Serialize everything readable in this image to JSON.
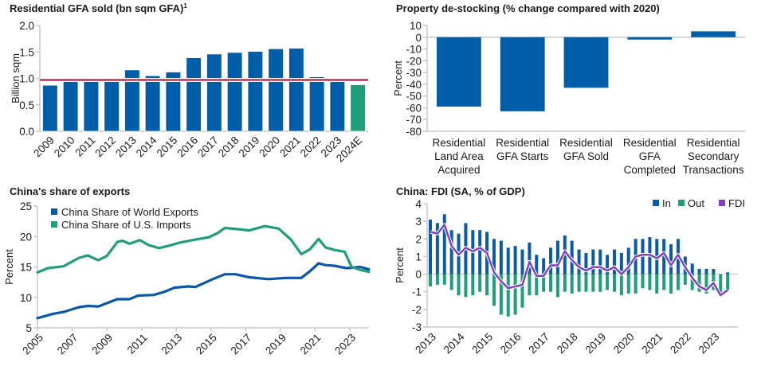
{
  "chart_data": [
    {
      "type": "bar",
      "title": "Residential GFA sold (bn sqm GFA)",
      "title_superscript": "1",
      "ylabel": "Billion sqm",
      "categories": [
        "2009",
        "2010",
        "2011",
        "2012",
        "2013",
        "2014",
        "2015",
        "2016",
        "2017",
        "2018",
        "2019",
        "2020",
        "2021",
        "2022",
        "2023",
        "2024E"
      ],
      "values": [
        0.87,
        0.94,
        0.94,
        0.94,
        1.16,
        1.05,
        1.12,
        1.39,
        1.46,
        1.49,
        1.51,
        1.56,
        1.57,
        1.03,
        0.94,
        0.88
      ],
      "bar_colors": {
        "actual": "#005ea8",
        "estimate": "#1f9e78"
      },
      "reference_line": {
        "value": 0.97,
        "color": "#a8224a"
      },
      "ylim": [
        0,
        2.0
      ],
      "yticks": [
        "0.0",
        "0.5",
        "1.0",
        "1.5",
        "2.0"
      ],
      "grid": false
    },
    {
      "type": "bar",
      "title": "Property de-stocking (% change compared with 2020)",
      "ylabel": "Percent",
      "categories": [
        [
          "Residential",
          "Land Area",
          "Acquired"
        ],
        [
          "Residential",
          "GFA Starts"
        ],
        [
          "Residential",
          "GFA Sold"
        ],
        [
          "Residential",
          "GFA",
          "Completed"
        ],
        [
          "Residential",
          "Secondary",
          "Transactions"
        ]
      ],
      "values": [
        -59,
        -63,
        -43,
        -2,
        5
      ],
      "color": "#005ea8",
      "ylim": [
        -80,
        10
      ],
      "yticks": [
        "-80",
        "-70",
        "-60",
        "-50",
        "-40",
        "-30",
        "-20",
        "-10",
        "0",
        "10"
      ],
      "grid": false
    },
    {
      "type": "line",
      "title": "China's share of exports",
      "ylabel": "Percent",
      "xlim": [
        2005,
        2024.1
      ],
      "ylim": [
        5,
        25
      ],
      "xticks": [
        "2005",
        "2007",
        "2009",
        "2011",
        "2013",
        "2015",
        "2017",
        "2019",
        "2021",
        "2023"
      ],
      "yticks": [
        "5",
        "10",
        "15",
        "20",
        "25"
      ],
      "legend": "top-left",
      "grid": false,
      "series": [
        {
          "name": "China Share of World Exports",
          "color": "#0a56a8",
          "x": [
            2005.0,
            2005.9,
            2006.5,
            2007.4,
            2007.9,
            2008.5,
            2009.6,
            2010.3,
            2010.8,
            2011.7,
            2012.3,
            2012.9,
            2013.7,
            2014.1,
            2015.1,
            2015.8,
            2016.4,
            2017.2,
            2018.3,
            2019.3,
            2020.2,
            2020.7,
            2021.2,
            2021.6,
            2022.1,
            2022.8,
            2023.6,
            2024.1
          ],
          "y": [
            6.6,
            7.3,
            7.6,
            8.4,
            8.6,
            8.5,
            9.7,
            9.7,
            10.3,
            10.4,
            10.9,
            11.6,
            11.8,
            11.7,
            13.0,
            13.8,
            13.8,
            13.3,
            13.0,
            13.2,
            13.2,
            14.3,
            15.6,
            15.3,
            15.2,
            14.8,
            15.0,
            14.6
          ]
        },
        {
          "name": "China Share of U.S. Imports",
          "color": "#1f9e78",
          "x": [
            2005.0,
            2005.6,
            2006.5,
            2007.4,
            2007.9,
            2008.5,
            2009.0,
            2009.6,
            2009.9,
            2010.3,
            2010.9,
            2011.4,
            2012.0,
            2012.6,
            2013.2,
            2014.1,
            2014.9,
            2015.4,
            2015.8,
            2016.6,
            2017.2,
            2018.1,
            2018.9,
            2019.6,
            2020.2,
            2020.7,
            2021.2,
            2021.6,
            2022.1,
            2022.7,
            2023.1,
            2023.6,
            2024.1
          ],
          "y": [
            14.1,
            14.8,
            15.1,
            16.5,
            16.9,
            16.1,
            16.8,
            19.1,
            19.3,
            18.8,
            19.4,
            18.6,
            18.1,
            18.5,
            19.0,
            19.5,
            19.9,
            20.6,
            21.4,
            21.2,
            21.0,
            21.7,
            21.3,
            19.5,
            17.1,
            17.9,
            19.6,
            18.2,
            17.8,
            17.5,
            15.0,
            14.5,
            14.2
          ]
        }
      ]
    },
    {
      "type": "bar",
      "title": "China: FDI (SA, % of GDP)",
      "ylabel": "Percent",
      "x_start": 2013.0,
      "x_step": 0.25,
      "xlim": [
        2013,
        2023.75
      ],
      "ylim": [
        -3,
        4
      ],
      "xticks": [
        "2013",
        "2014",
        "2015",
        "2016",
        "2017",
        "2018",
        "2019",
        "2020",
        "2021",
        "2022",
        "2023"
      ],
      "yticks": [
        "-3",
        "-2",
        "-1",
        "0",
        "1",
        "2",
        "3",
        "4"
      ],
      "legend": "top-right",
      "grid": false,
      "series": [
        {
          "name": "In",
          "kind": "bar",
          "color": "#0a5aa8",
          "values": [
            3.1,
            2.9,
            3.4,
            2.5,
            2.3,
            2.9,
            2.5,
            2.5,
            2.4,
            2.0,
            1.9,
            1.5,
            1.6,
            1.4,
            1.8,
            1.1,
            0.9,
            1.5,
            1.9,
            2.2,
            1.9,
            1.4,
            1.2,
            1.4,
            1.4,
            1.1,
            1.4,
            1.2,
            1.5,
            2.0,
            2.0,
            2.1,
            2.0,
            2.0,
            1.7,
            2.0,
            1.0,
            0.6,
            0.3,
            0.3,
            0.3,
            0.0,
            0.1
          ]
        },
        {
          "name": "Out",
          "kind": "bar",
          "color": "#1f9e78",
          "values": [
            -0.7,
            -0.6,
            -0.6,
            -0.9,
            -1.2,
            -1.3,
            -1.2,
            -1.0,
            -1.2,
            -1.8,
            -2.3,
            -2.4,
            -2.3,
            -1.9,
            -1.2,
            -1.2,
            -1.0,
            -1.0,
            -1.3,
            -1.0,
            -1.1,
            -1.0,
            -1.0,
            -1.0,
            -1.0,
            -0.9,
            -1.0,
            -1.2,
            -1.1,
            -1.1,
            -0.8,
            -0.9,
            -1.1,
            -0.9,
            -1.1,
            -0.9,
            -0.6,
            -0.9,
            -1.0,
            -1.1,
            -0.9,
            -1.2,
            -0.9
          ]
        },
        {
          "name": "FDI",
          "kind": "line",
          "color": "#7b3fc4",
          "values": [
            2.4,
            2.3,
            2.8,
            1.6,
            1.1,
            1.5,
            1.3,
            1.5,
            1.2,
            0.1,
            -0.4,
            -0.8,
            -0.7,
            -0.6,
            0.7,
            -0.1,
            -0.1,
            0.5,
            0.5,
            1.3,
            0.8,
            0.4,
            0.2,
            0.4,
            0.4,
            0.2,
            0.4,
            0.0,
            0.4,
            1.0,
            1.1,
            1.1,
            0.9,
            1.2,
            0.5,
            1.1,
            0.4,
            -0.2,
            -0.7,
            -0.9,
            -0.5,
            -1.2,
            -0.9
          ]
        }
      ]
    }
  ]
}
